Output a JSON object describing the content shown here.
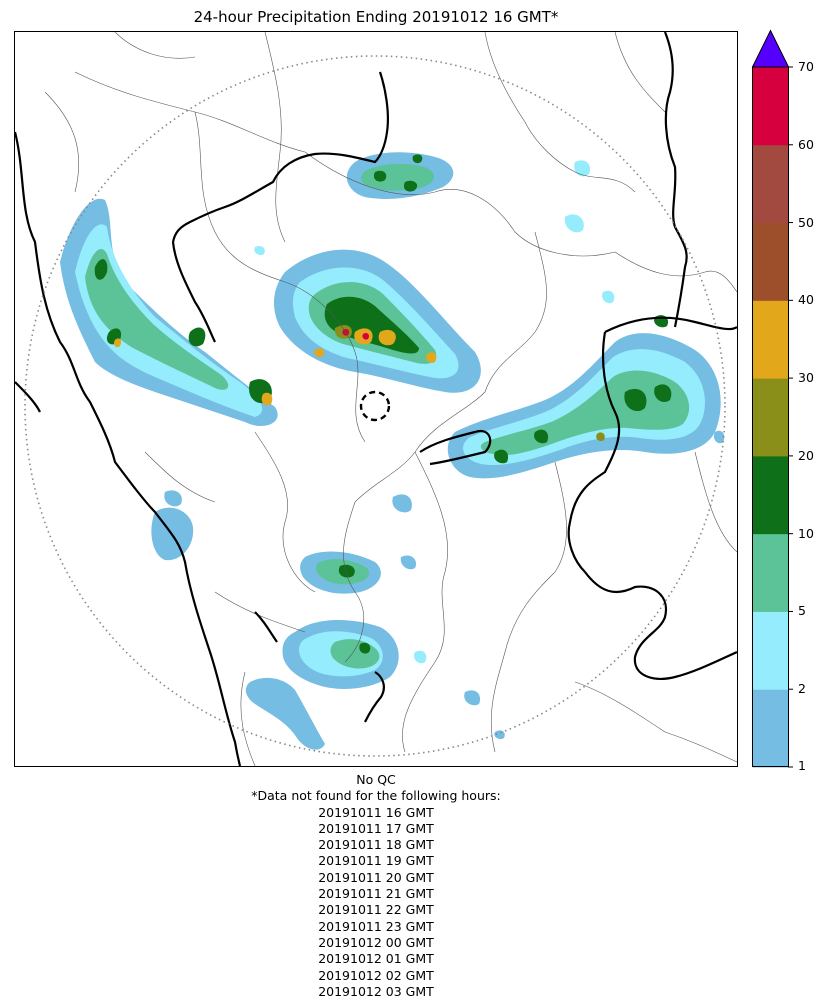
{
  "title": "24-hour Precipitation Ending 20191012 16 GMT*",
  "colorbar": {
    "ticks": [
      "1",
      "2",
      "5",
      "10",
      "20",
      "30",
      "40",
      "50",
      "60",
      "70"
    ],
    "colors": [
      "#75bde2",
      "#95ecfc",
      "#5cc399",
      "#0e7119",
      "#898f19",
      "#e3a71b",
      "#9c4f2a",
      "#a34a40",
      "#d6003f"
    ],
    "extend_color": "#5500ff",
    "extend": "max"
  },
  "footer": {
    "qc_note": "No QC",
    "missing_header": "*Data not found for the following hours:",
    "missing_hours": [
      "20191011 16 GMT",
      "20191011 17 GMT",
      "20191011 18 GMT",
      "20191011 19 GMT",
      "20191011 20 GMT",
      "20191011 21 GMT",
      "20191011 22 GMT",
      "20191011 23 GMT",
      "20191012 00 GMT",
      "20191012 01 GMT",
      "20191012 02 GMT",
      "20191012 03 GMT"
    ]
  },
  "map": {
    "radar_range_ring": "dotted-gray",
    "radar_site_marker": "dashed-black-circle"
  }
}
